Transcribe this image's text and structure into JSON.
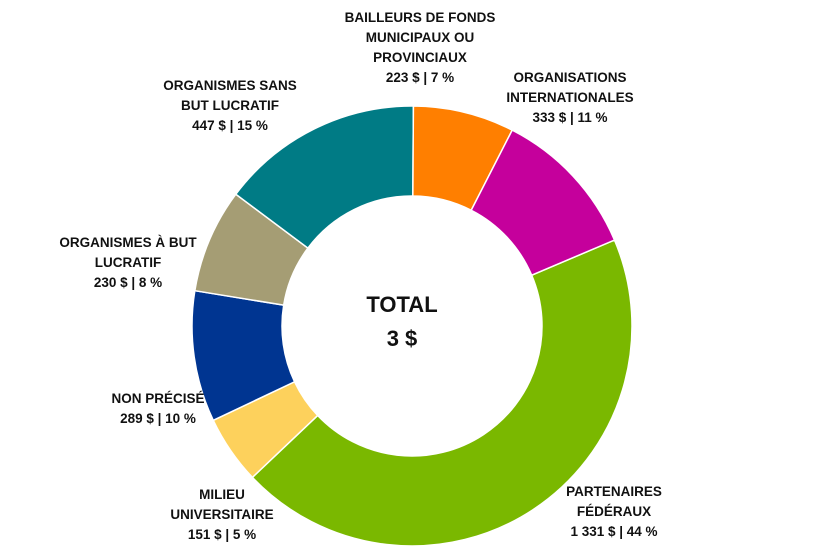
{
  "chart_data": {
    "type": "pie",
    "donut": true,
    "center_title": "TOTAL",
    "center_value": "3 $",
    "slices": [
      {
        "label_lines": [
          "PARTENAIRES",
          "FÉDÉRAUX"
        ],
        "value": 1331,
        "value_label": "1 331 $ | 44 %",
        "percent": 44,
        "color": "#7ab800"
      },
      {
        "label_lines": [
          "MILIEU",
          "UNIVERSITAIRE"
        ],
        "value": 151,
        "value_label": "151 $ | 5 %",
        "percent": 5,
        "color": "#fdd15c"
      },
      {
        "label_lines": [
          "NON PRÉCISÉ"
        ],
        "value": 289,
        "value_label": "289 $ | 10 %",
        "percent": 10,
        "color": "#003591"
      },
      {
        "label_lines": [
          "ORGANISMES À BUT",
          "LUCRATIF"
        ],
        "value": 230,
        "value_label": "230 $ | 8 %",
        "percent": 8,
        "color": "#a59d74"
      },
      {
        "label_lines": [
          "ORGANISMES SANS",
          "BUT LUCRATIF"
        ],
        "value": 447,
        "value_label": "447 $ | 15 %",
        "percent": 15,
        "color": "#007b85"
      },
      {
        "label_lines": [
          "BAILLEURS DE FONDS",
          "MUNICIPAUX OU",
          "PROVINCIAUX"
        ],
        "value": 223,
        "value_label": "223 $ | 7 %",
        "percent": 7,
        "color": "#ff7f00"
      },
      {
        "label_lines": [
          "ORGANISATIONS",
          "INTERNATIONALES"
        ],
        "value": 333,
        "value_label": "333 $ | 11 %",
        "percent": 11,
        "color": "#c5009c"
      }
    ]
  }
}
